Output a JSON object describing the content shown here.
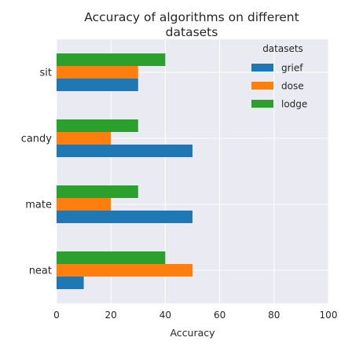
{
  "chart_data": {
    "type": "bar",
    "orientation": "horizontal",
    "title_lines": [
      "Accuracy of algorithms on different",
      "datasets"
    ],
    "xlabel": "Accuracy",
    "ylabel": "",
    "xlim": [
      0,
      100
    ],
    "xticks": [
      0,
      20,
      40,
      60,
      80,
      100
    ],
    "grid": true,
    "categories": [
      "neat",
      "mate",
      "candy",
      "sit"
    ],
    "series": [
      {
        "name": "grief",
        "color": "#1f77b4",
        "values": [
          10,
          50,
          50,
          30
        ]
      },
      {
        "name": "dose",
        "color": "#ff7f0e",
        "values": [
          50,
          20,
          20,
          30
        ]
      },
      {
        "name": "lodge",
        "color": "#2ca02c",
        "values": [
          40,
          30,
          30,
          40
        ]
      }
    ],
    "legend": {
      "title": "datasets",
      "placement": "upper right"
    }
  },
  "colors": {
    "plot_background": "#eaeaf2",
    "grid": "#ffffff",
    "text": "#262626"
  }
}
